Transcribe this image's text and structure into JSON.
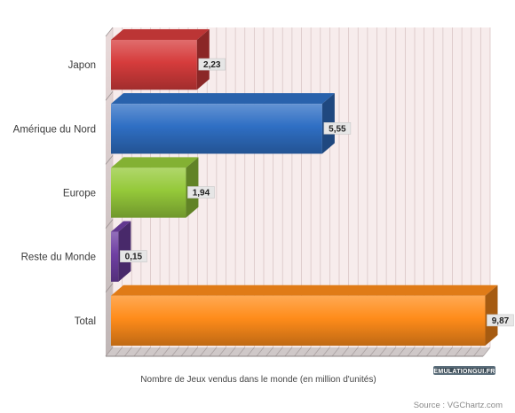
{
  "chart_data": {
    "type": "bar",
    "orientation": "horizontal",
    "categories": [
      "Japon",
      "Amérique du Nord",
      "Europe",
      "Reste du Monde",
      "Total"
    ],
    "values": [
      2.23,
      5.55,
      1.94,
      0.15,
      9.87
    ],
    "value_labels": [
      "2,23",
      "5,55",
      "1,94",
      "0,15",
      "9,87"
    ],
    "colors": [
      "#d63c3c",
      "#2f6fc4",
      "#95c93a",
      "#6f3fa3",
      "#ff8c1a"
    ],
    "xlabel": "Nombre de Jeux vendus dans le monde (en million d'unités)",
    "xlim": [
      0,
      10
    ],
    "grid": true,
    "legend": "none",
    "effect": "3d"
  },
  "footer": {
    "logo_text": "EMULATIONGUI.FR",
    "source": "Source : VGChartz.com"
  }
}
